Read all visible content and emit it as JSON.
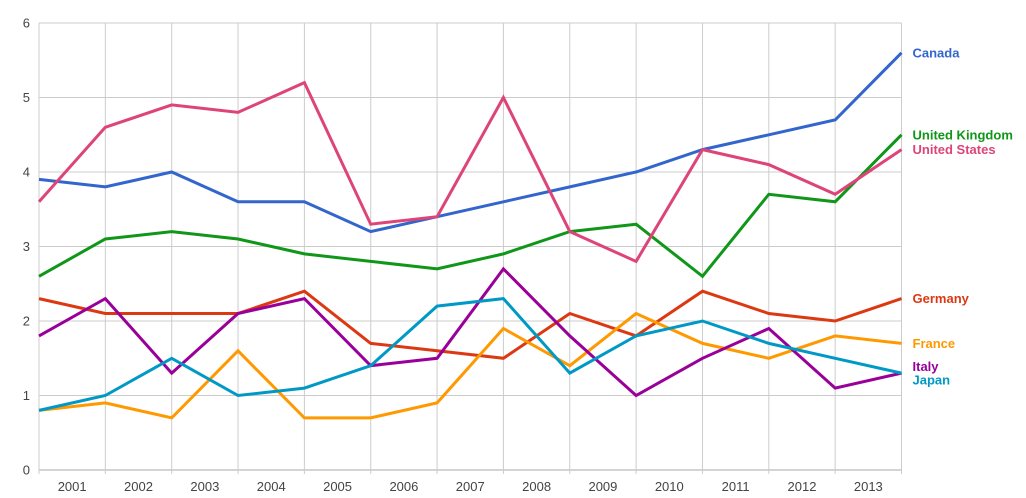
{
  "chart_data": {
    "type": "line",
    "title": "",
    "xlabel": "",
    "ylabel": "",
    "x_tick_labels": [
      "2001",
      "2002",
      "2003",
      "2004",
      "2005",
      "2006",
      "2007",
      "2008",
      "2009",
      "2010",
      "2011",
      "2012",
      "2013"
    ],
    "y_tick_labels": [
      "0",
      "1",
      "2",
      "3",
      "4",
      "5",
      "6"
    ],
    "y_ticks": [
      0,
      1,
      2,
      3,
      4,
      5,
      6
    ],
    "ylim": [
      0,
      6
    ],
    "points_per_series": 14,
    "x_points_note": "14 evenly spaced points at vertical gridlines; year labels are centered between gridlines",
    "grid": true,
    "legend_position": "right-end-of-line",
    "grid_color": "#cccccc",
    "baseline_color": "#aaaaaa",
    "axis_text_color": "#444444",
    "background_color": "#ffffff",
    "series": [
      {
        "name": "Canada",
        "color": "#3366CC",
        "values": [
          3.9,
          3.8,
          4.0,
          3.6,
          3.6,
          3.2,
          3.4,
          3.6,
          3.8,
          4.0,
          4.3,
          4.5,
          4.7,
          5.6
        ]
      },
      {
        "name": "Germany",
        "color": "#DC3912",
        "values": [
          2.3,
          2.1,
          2.1,
          2.1,
          2.4,
          1.7,
          1.6,
          1.5,
          2.1,
          1.8,
          2.4,
          2.1,
          2.0,
          2.3
        ]
      },
      {
        "name": "France",
        "color": "#FF9900",
        "values": [
          0.8,
          0.9,
          0.7,
          1.6,
          0.7,
          0.7,
          0.9,
          1.9,
          1.4,
          2.1,
          1.7,
          1.5,
          1.8,
          1.7
        ]
      },
      {
        "name": "United Kingdom",
        "color": "#109618",
        "values": [
          2.6,
          3.1,
          3.2,
          3.1,
          2.9,
          2.8,
          2.7,
          2.9,
          3.2,
          3.3,
          2.6,
          3.7,
          3.6,
          4.5
        ]
      },
      {
        "name": "Italy",
        "color": "#990099",
        "values": [
          1.8,
          2.3,
          1.3,
          2.1,
          2.3,
          1.4,
          1.5,
          2.7,
          1.8,
          1.0,
          1.5,
          1.9,
          1.1,
          1.3
        ]
      },
      {
        "name": "Japan",
        "color": "#0099C6",
        "values": [
          0.8,
          1.0,
          1.5,
          1.0,
          1.1,
          1.4,
          2.2,
          2.3,
          1.3,
          1.8,
          2.0,
          1.7,
          1.5,
          1.3
        ]
      },
      {
        "name": "United States",
        "color": "#DD4477",
        "values": [
          3.6,
          4.6,
          4.9,
          4.8,
          5.2,
          3.3,
          3.4,
          5.0,
          3.2,
          2.8,
          4.3,
          4.1,
          3.7,
          4.3
        ]
      }
    ]
  }
}
